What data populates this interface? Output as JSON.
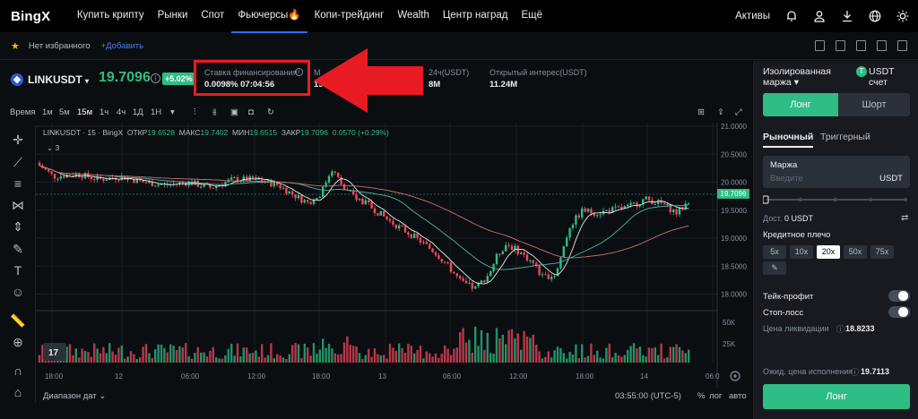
{
  "nav": {
    "logo": "BingX",
    "links": [
      "Купить крипту",
      "Рынки",
      "Спот",
      "Фьючерсы🔥",
      "Копи-трейдинг",
      "Wealth",
      "Центр наград",
      "Ещё"
    ],
    "assets": "Активы"
  },
  "favorites": {
    "none": "Нет избранного",
    "add": "+Добавить"
  },
  "ticker": {
    "symbol": "LINKUSDT",
    "price": "19.7096",
    "change": "+5.02%",
    "funding_label": "Ставка финансирования",
    "funding_value": "0.0098% 07:04:56",
    "m_label": "М",
    "m_value": "19.",
    "vol_label": "24ч(USDT)",
    "vol_value": "8M",
    "oi_label": "Открытый интерес(USDT)",
    "oi_value": "11.24M"
  },
  "toolbar": {
    "time": "Время",
    "intervals": [
      "1м",
      "5м",
      "15м",
      "1ч",
      "4ч",
      "1Д",
      "1Н"
    ],
    "active_interval": "15м"
  },
  "chart_header": {
    "title": "LINKUSDT · 15 · BingX",
    "open_label": "ОТКР",
    "open": "19.6528",
    "high_label": "МАКС",
    "high": "19.7402",
    "low_label": "МИН",
    "low": "19.6515",
    "close_label": "ЗАКР",
    "close": "19.7096",
    "change": "0.0570 (+0.29%)",
    "indicator_count": "3"
  },
  "chart_data": {
    "type": "candlestick",
    "y_ticks": [
      "21.0000",
      "20.5000",
      "20.0000",
      "19.5000",
      "19.0000",
      "18.5000",
      "18.0000"
    ],
    "x_ticks": [
      "18:00",
      "12",
      "06:00",
      "12:00",
      "18:00",
      "13",
      "06:00",
      "12:00",
      "18:00",
      "14",
      "06:0"
    ],
    "last_price": "19.7096",
    "vol_ticks": [
      "50K",
      "25K"
    ],
    "ylim": [
      17.8,
      21.0
    ]
  },
  "bottom": {
    "date_range": "Диапазон дат",
    "clock": "03:55:00 (UTC-5)",
    "pct": "%",
    "log": "лог",
    "auto": "авто"
  },
  "panel": {
    "margin_mode": "Изолированная маржа",
    "account": "USDT счет",
    "long_tab": "Лонг",
    "short_tab": "Шорт",
    "market": "Рыночный",
    "trigger": "Триггерный",
    "margin_label": "Маржа",
    "margin_placeholder": "Введите",
    "margin_unit": "USDT",
    "avail_label": "Дост.",
    "avail_value": "0 USDT",
    "leverage_label": "Кредитное плечо",
    "leverages": [
      "5x",
      "10x",
      "20x",
      "50x",
      "75x"
    ],
    "selected_leverage": "20x",
    "tp_label": "Тейк-профит",
    "sl_label": "Стоп-лосс",
    "liq_label": "Цена ликвидации",
    "liq_value": "18.8233",
    "exec_label": "Ожид. цена исполнения",
    "exec_value": "19.7113",
    "submit": "Лонг"
  },
  "colors": {
    "up": "#2ebd85",
    "down": "#f6465d",
    "accent": "#2f6fec",
    "highlight": "#e81b24"
  }
}
